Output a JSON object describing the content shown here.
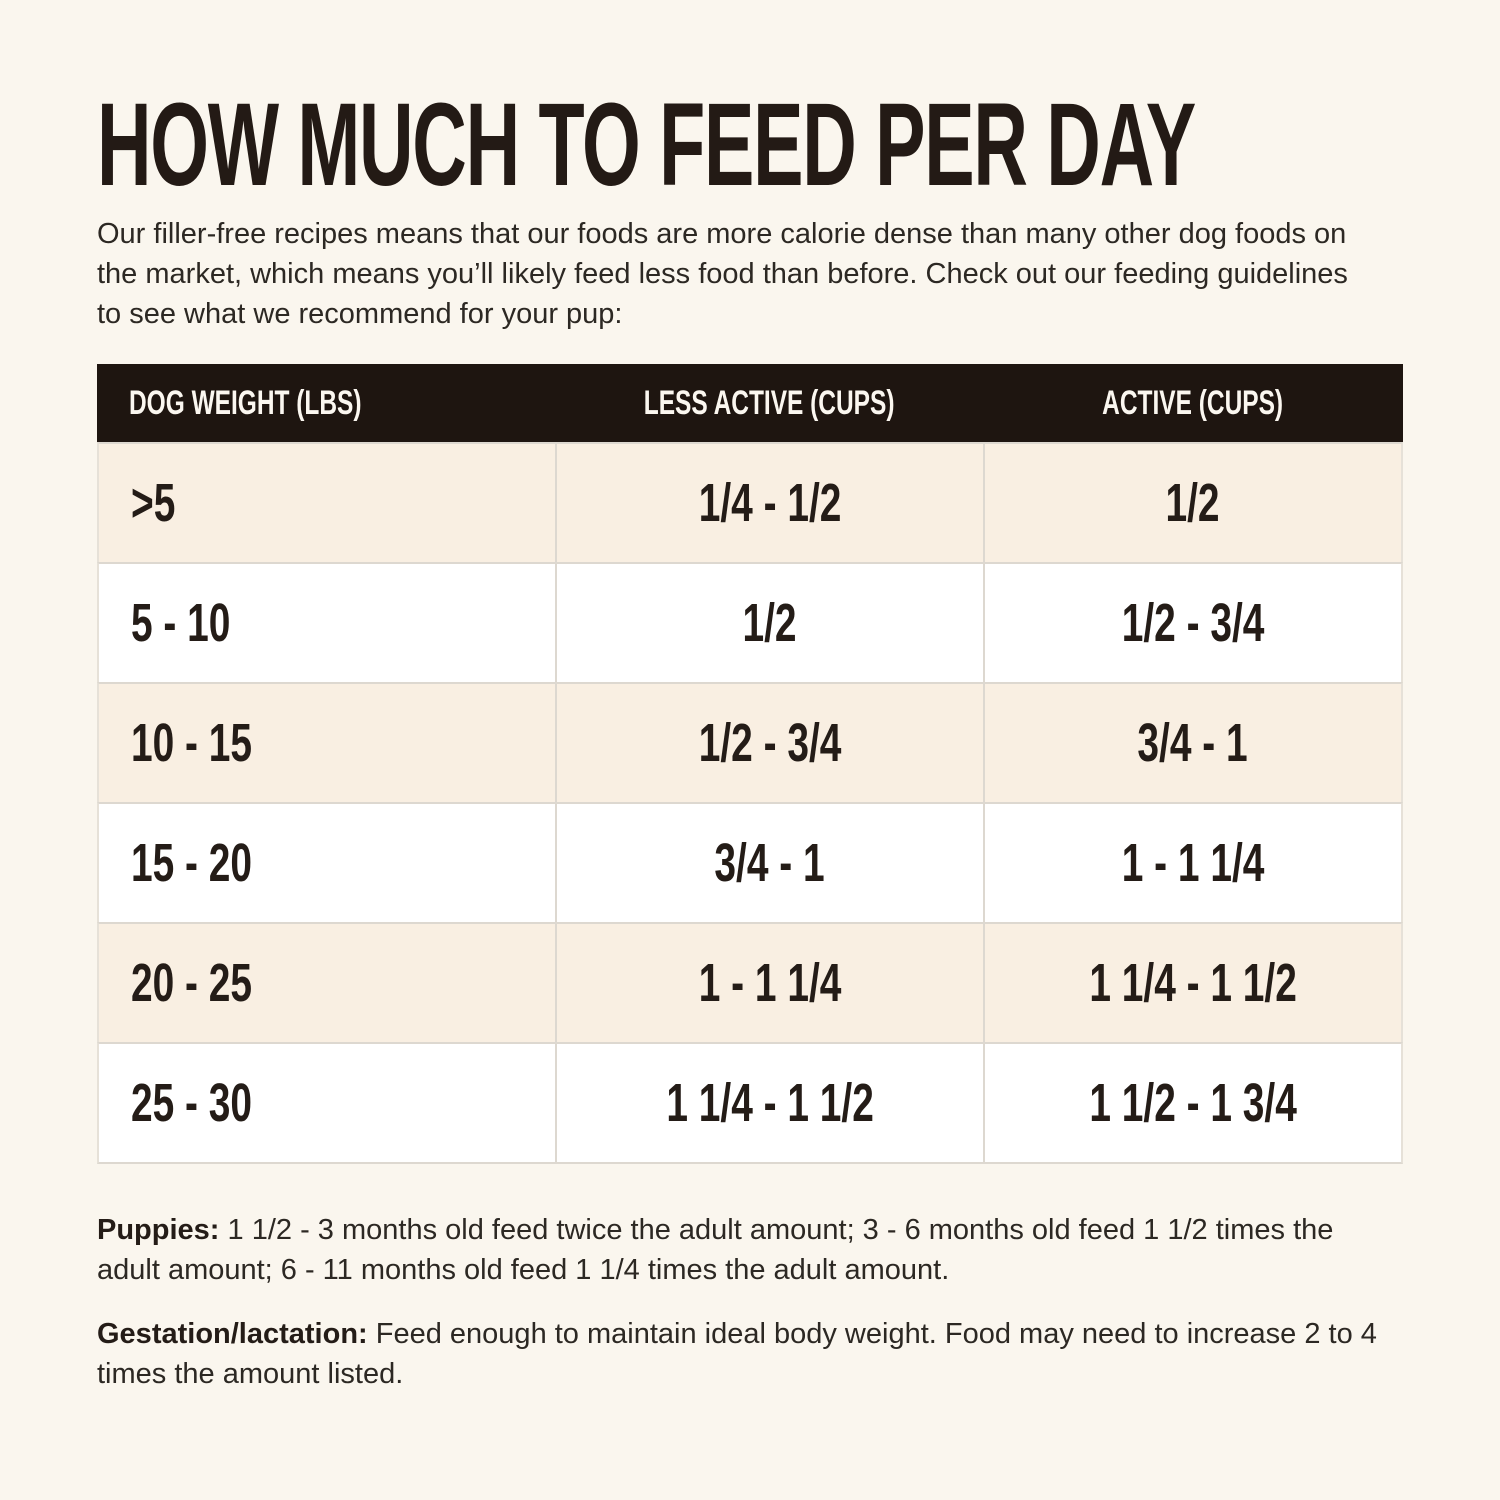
{
  "page": {
    "title": "HOW MUCH TO FEED PER DAY",
    "intro": "Our filler-free recipes means that our foods are more calorie dense than many other dog foods on the market, which means you’ll likely feed less food than before. Check out our feeding guidelines to see what we recommend for your pup:"
  },
  "table": {
    "columns": [
      "DOG WEIGHT (LBS)",
      "LESS ACTIVE (CUPS)",
      "ACTIVE (CUPS)"
    ],
    "rows": [
      [
        ">5",
        "1/4 - 1/2",
        "1/2"
      ],
      [
        "5 - 10",
        "1/2",
        "1/2 - 3/4"
      ],
      [
        "10 - 15",
        "1/2 - 3/4",
        "3/4 - 1"
      ],
      [
        "15 - 20",
        "3/4 - 1",
        "1 - 1 1/4"
      ],
      [
        "20 - 25",
        "1 - 1 1/4",
        "1 1/4 - 1 1/2"
      ],
      [
        "25 - 30",
        "1 1/4 - 1 1/2",
        "1 1/2 - 1 3/4"
      ]
    ]
  },
  "notes": [
    {
      "label": "Puppies:",
      "text": "1 1/2 - 3 months old feed twice the adult amount; 3 - 6 months old feed 1 1/2 times the adult amount; 6 - 11 months old feed 1 1/4 times the adult amount."
    },
    {
      "label": "Gestation/lactation:",
      "text": "Feed enough to maintain ideal body weight. Food may need to increase 2 to 4 times the amount listed."
    }
  ],
  "colors": {
    "page_bg": "#faf6ee",
    "header_bg": "#1e1510",
    "header_text": "#fbf7f0",
    "stripe_row_bg": "#f9efe2",
    "white_row_bg": "#ffffff",
    "border": "#ddd8d0",
    "text": "#241c17"
  }
}
